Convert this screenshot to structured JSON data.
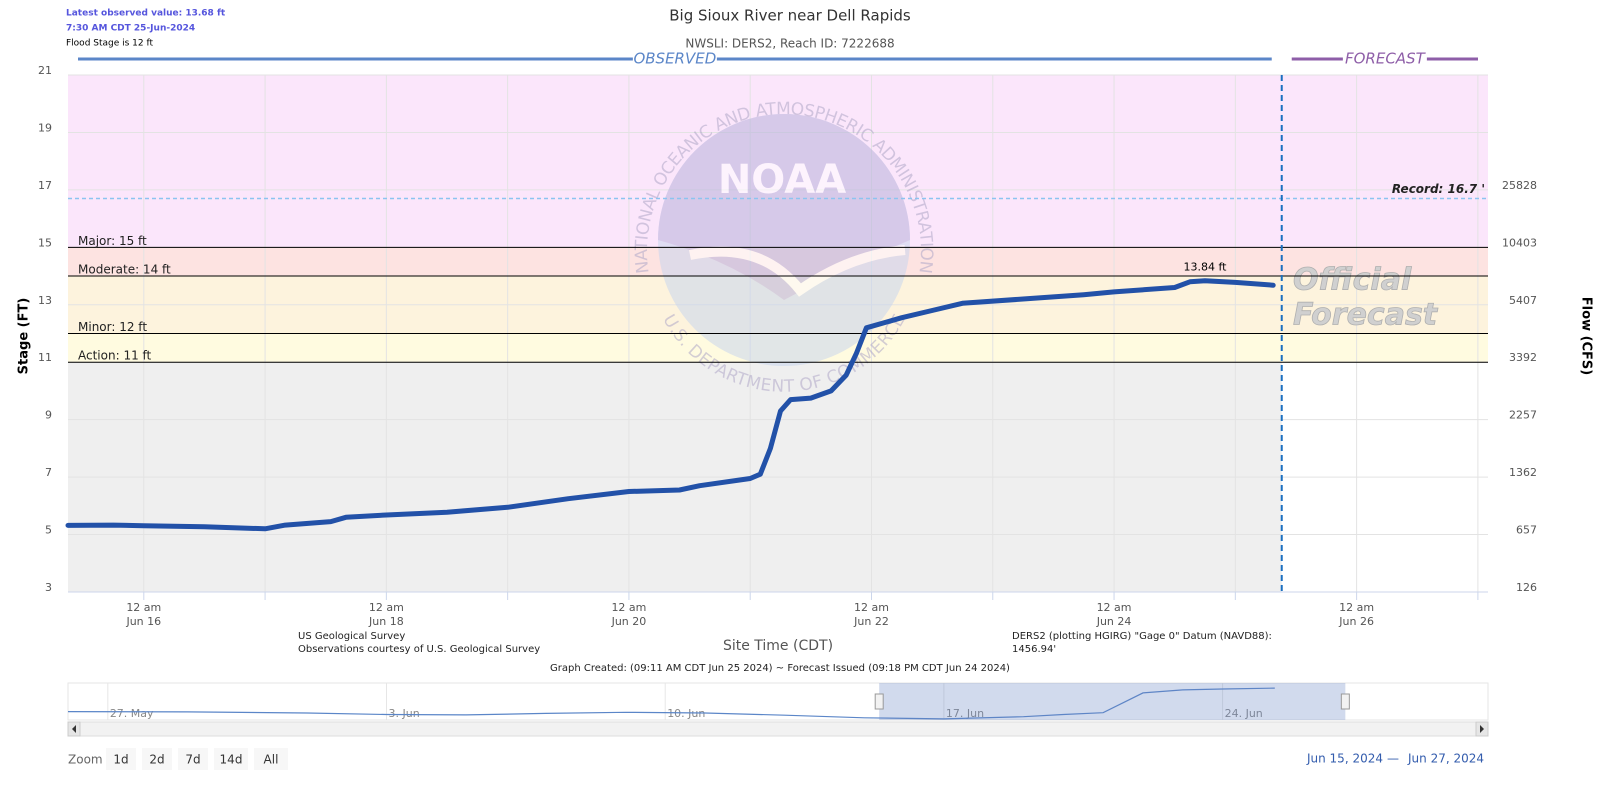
{
  "header": {
    "latest": "Latest observed value: 13.68 ft",
    "time": "7:30 AM CDT 25-Jun-2024",
    "flood_stage": "Flood Stage is 12 ft"
  },
  "chart_data": {
    "type": "line",
    "title": "Big Sioux River near Dell Rapids",
    "subtitle": "NWSLI: DERS2, Reach ID: 7222688",
    "observed_label": "OBSERVED",
    "observed_color": "#5b86c8",
    "forecast_label": "FORECAST",
    "forecast_color": "#8e5ea8",
    "forecast_start": "2024-06-25T09:11",
    "ylabel": "Stage (FT)",
    "y2label": "Flow (CFS)",
    "xlabel": "Site Time (CDT)",
    "xlim": [
      "2024-06-15T09:00",
      "2024-06-27T02:00"
    ],
    "ylim": [
      3,
      21
    ],
    "yticks": [
      3,
      5,
      7,
      9,
      11,
      13,
      15,
      17,
      19,
      21
    ],
    "grid": true,
    "xticks": [
      {
        "value": "2024-06-16T00:00",
        "label": [
          "12 am",
          "Jun 16"
        ]
      },
      {
        "value": "2024-06-18T00:00",
        "label": [
          "12 am",
          "Jun 18"
        ]
      },
      {
        "value": "2024-06-20T00:00",
        "label": [
          "12 am",
          "Jun 20"
        ]
      },
      {
        "value": "2024-06-22T00:00",
        "label": [
          "12 am",
          "Jun 22"
        ]
      },
      {
        "value": "2024-06-24T00:00",
        "label": [
          "12 am",
          "Jun 24"
        ]
      },
      {
        "value": "2024-06-26T00:00",
        "label": [
          "12 am",
          "Jun 26"
        ]
      }
    ],
    "x_minor": [
      "2024-06-17T00:00",
      "2024-06-19T00:00",
      "2024-06-21T00:00",
      "2024-06-23T00:00",
      "2024-06-25T00:00",
      "2024-06-27T00:00"
    ],
    "rating": {
      "stage": [
        3,
        5,
        7,
        9,
        11,
        13,
        15,
        17
      ],
      "flow": [
        126,
        657,
        1362,
        2257,
        3392,
        5407,
        10403,
        25828
      ]
    },
    "below_color": "#efefef",
    "thresholds": [
      {
        "value": 11,
        "label": "Action: 11 ft",
        "color": "#fffbe0"
      },
      {
        "value": 12,
        "label": "Minor: 12 ft",
        "color": "#fdf3dd"
      },
      {
        "value": 14,
        "label": "Moderate: 14 ft",
        "color": "#fde3e1"
      },
      {
        "value": 15,
        "label": "Major: 15 ft",
        "color": "#fbe6fb"
      }
    ],
    "record": {
      "value": 16.7,
      "label": "Record: 16.7 '",
      "color": "#8cc4f0"
    },
    "x": [
      "2024-06-15T09:00",
      "2024-06-15T18:00",
      "2024-06-16T00:00",
      "2024-06-16T12:00",
      "2024-06-17T00:00",
      "2024-06-17T04:00",
      "2024-06-17T13:00",
      "2024-06-17T16:00",
      "2024-06-18T00:00",
      "2024-06-18T12:00",
      "2024-06-19T00:00",
      "2024-06-19T12:00",
      "2024-06-20T00:00",
      "2024-06-20T10:00",
      "2024-06-20T14:00",
      "2024-06-21T00:00",
      "2024-06-21T02:00",
      "2024-06-21T04:00",
      "2024-06-21T06:00",
      "2024-06-21T08:00",
      "2024-06-21T12:00",
      "2024-06-21T16:00",
      "2024-06-21T19:00",
      "2024-06-21T21:00",
      "2024-06-21T23:00",
      "2024-06-22T06:00",
      "2024-06-22T12:00",
      "2024-06-22T18:00",
      "2024-06-23T06:00",
      "2024-06-23T18:00",
      "2024-06-24T00:00",
      "2024-06-24T12:00",
      "2024-06-24T15:00",
      "2024-06-24T18:00",
      "2024-06-25T00:00",
      "2024-06-25T07:30"
    ],
    "series": [
      {
        "color": "#2251a8",
        "values": [
          5.32,
          5.33,
          5.31,
          5.27,
          5.2,
          5.33,
          5.45,
          5.6,
          5.68,
          5.78,
          5.95,
          6.25,
          6.5,
          6.55,
          6.7,
          6.95,
          7.1,
          8.0,
          9.3,
          9.7,
          9.75,
          10.0,
          10.55,
          11.3,
          12.2,
          12.55,
          12.8,
          13.05,
          13.2,
          13.35,
          13.45,
          13.6,
          13.8,
          13.84,
          13.78,
          13.68
        ],
        "value_labels": [
          null,
          null,
          null,
          null,
          null,
          null,
          null,
          null,
          null,
          null,
          null,
          null,
          null,
          null,
          null,
          null,
          null,
          null,
          null,
          null,
          null,
          null,
          null,
          null,
          null,
          null,
          null,
          null,
          null,
          null,
          null,
          null,
          null,
          "13.84 ft",
          null,
          null
        ]
      }
    ],
    "watermark": {
      "logo": "NOAA",
      "outer": "NATIONAL OCEANIC AND ATMOSPHERIC ADMINISTRATION",
      "inner": "U.S. DEPARTMENT OF COMMERCE",
      "official": [
        "Official",
        "Forecast"
      ]
    }
  },
  "footer": {
    "source": [
      "US Geological Survey",
      "Observations courtesy of U.S. Geological Survey"
    ],
    "datum": [
      "DERS2 (plotting HGIRG) \"Gage 0\" Datum (NAVD88):",
      "1456.94'"
    ],
    "created": "Graph Created: (09:11 AM CDT Jun 25 2024) ~ Forecast Issued (09:18 PM CDT Jun 24 2024)"
  },
  "navigator": {
    "xlim": [
      "2024-05-26T00:00",
      "2024-06-30T16:00"
    ],
    "ylim": [
      5,
      14
    ],
    "xticks": [
      {
        "value": "2024-05-27T00:00",
        "label": "27. May"
      },
      {
        "value": "2024-06-03T00:00",
        "label": "3. Jun"
      },
      {
        "value": "2024-06-10T00:00",
        "label": "10. Jun"
      },
      {
        "value": "2024-06-17T00:00",
        "label": "17. Jun"
      },
      {
        "value": "2024-06-24T00:00",
        "label": "24. Jun"
      }
    ],
    "x": [
      "2024-05-26T00:00",
      "2024-05-29T00:00",
      "2024-06-01T00:00",
      "2024-06-03T00:00",
      "2024-06-05T00:00",
      "2024-06-07T00:00",
      "2024-06-09T00:00",
      "2024-06-11T00:00",
      "2024-06-13T00:00",
      "2024-06-15T00:00",
      "2024-06-17T00:00",
      "2024-06-19T00:00",
      "2024-06-20T00:00",
      "2024-06-21T00:00",
      "2024-06-21T12:00",
      "2024-06-22T00:00",
      "2024-06-22T12:00",
      "2024-06-23T00:00",
      "2024-06-24T00:00",
      "2024-06-25T07:30"
    ],
    "values": [
      7.3,
      7.2,
      6.9,
      6.5,
      6.4,
      6.8,
      7.1,
      6.9,
      6.3,
      5.6,
      5.3,
      5.9,
      6.5,
      7.0,
      9.7,
      12.4,
      12.8,
      13.2,
      13.45,
      13.7
    ],
    "color": "#5b86c8"
  },
  "zoom": {
    "label": "Zoom",
    "buttons": [
      "1d",
      "2d",
      "7d",
      "14d",
      "All"
    ]
  },
  "range": {
    "from": "Jun 15, 2024",
    "separator": "—",
    "to": "Jun 27, 2024"
  }
}
